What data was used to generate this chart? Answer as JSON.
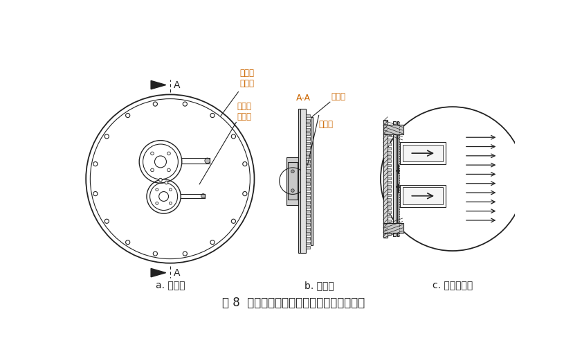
{
  "title": "图 8  优化后的尾端端面法兰进气结构示意图",
  "subtitle_a": "a. 正视图",
  "subtitle_b": "b. 侧视图",
  "subtitle_c": "c. 局部放大图",
  "label_flange": "尾端端\n面法兰",
  "label_pipe": "尾端进\n气管道",
  "label_plate": "均气板",
  "label_hole": "通气孔",
  "label_aa": "A-A",
  "bg_color": "#ffffff",
  "line_color": "#222222",
  "annotation_color": "#cc6600"
}
